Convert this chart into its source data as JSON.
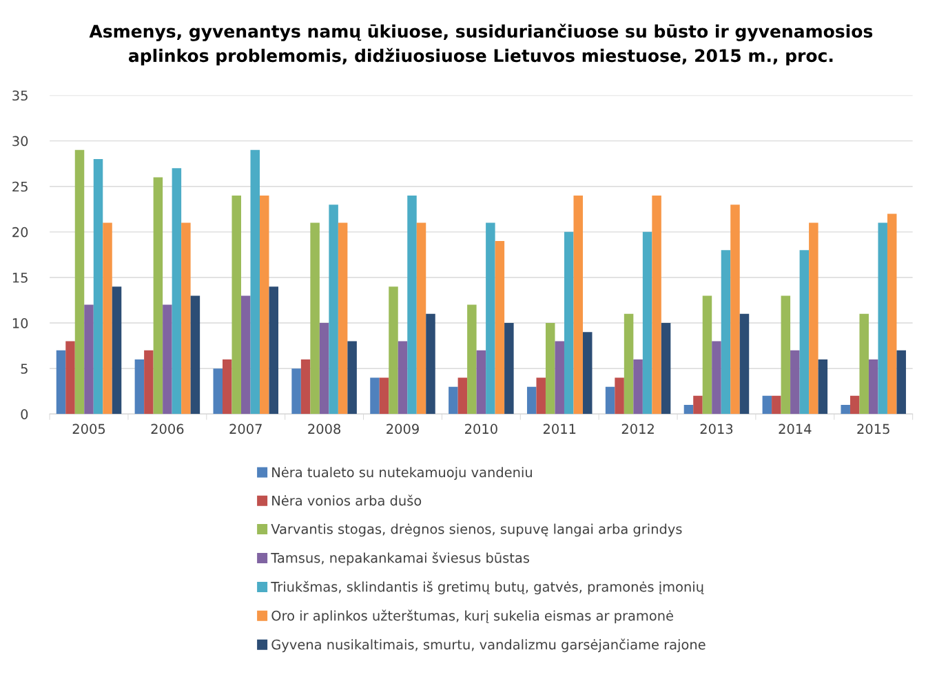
{
  "chart_data": {
    "type": "bar",
    "title": "Asmenys, gyvenantys namų ūkiuose, susiduriančiuose su būsto ir gyvenamosios\naplinkos problemomis, didžiuosiuose Lietuvos miestuose, 2015 m., proc.",
    "categories": [
      "2005",
      "2006",
      "2007",
      "2008",
      "2009",
      "2010",
      "2011",
      "2012",
      "2013",
      "2014",
      "2015"
    ],
    "series": [
      {
        "name": "Nėra tualeto su nutekamuoju vandeniu",
        "color": "#4f81bd",
        "values": [
          7,
          6,
          5,
          5,
          4,
          3,
          3,
          3,
          1,
          2,
          1
        ]
      },
      {
        "name": "Nėra vonios arba dušo",
        "color": "#c0504d",
        "values": [
          8,
          7,
          6,
          6,
          4,
          4,
          4,
          4,
          2,
          2,
          2
        ]
      },
      {
        "name": "Varvantis stogas, drėgnos sienos, supuvę langai arba grindys",
        "color": "#9bbb59",
        "values": [
          29,
          26,
          24,
          21,
          14,
          12,
          10,
          11,
          13,
          13,
          11
        ]
      },
      {
        "name": "Tamsus, nepakankamai šviesus būstas",
        "color": "#8064a2",
        "values": [
          12,
          12,
          13,
          10,
          8,
          7,
          8,
          6,
          8,
          7,
          6
        ]
      },
      {
        "name": "Triukšmas, sklindantis iš gretimų butų, gatvės, pramonės įmonių",
        "color": "#4bacc6",
        "values": [
          28,
          27,
          29,
          23,
          24,
          21,
          20,
          20,
          18,
          18,
          21
        ]
      },
      {
        "name": "Oro ir aplinkos užterštumas, kurį sukelia eismas ar pramonė",
        "color": "#f79646",
        "values": [
          21,
          21,
          24,
          21,
          21,
          19,
          24,
          24,
          23,
          21,
          22
        ]
      },
      {
        "name": "Gyvena nusikaltimais, smurtu, vandalizmu garsėjančiame rajone",
        "color": "#2c4d75",
        "values": [
          14,
          13,
          14,
          8,
          11,
          10,
          9,
          10,
          11,
          6,
          7
        ]
      }
    ],
    "ylim": [
      0,
      35
    ],
    "yticks": [
      0,
      5,
      10,
      15,
      20,
      25,
      30,
      35
    ],
    "grid": "y",
    "legend": "bottom"
  }
}
